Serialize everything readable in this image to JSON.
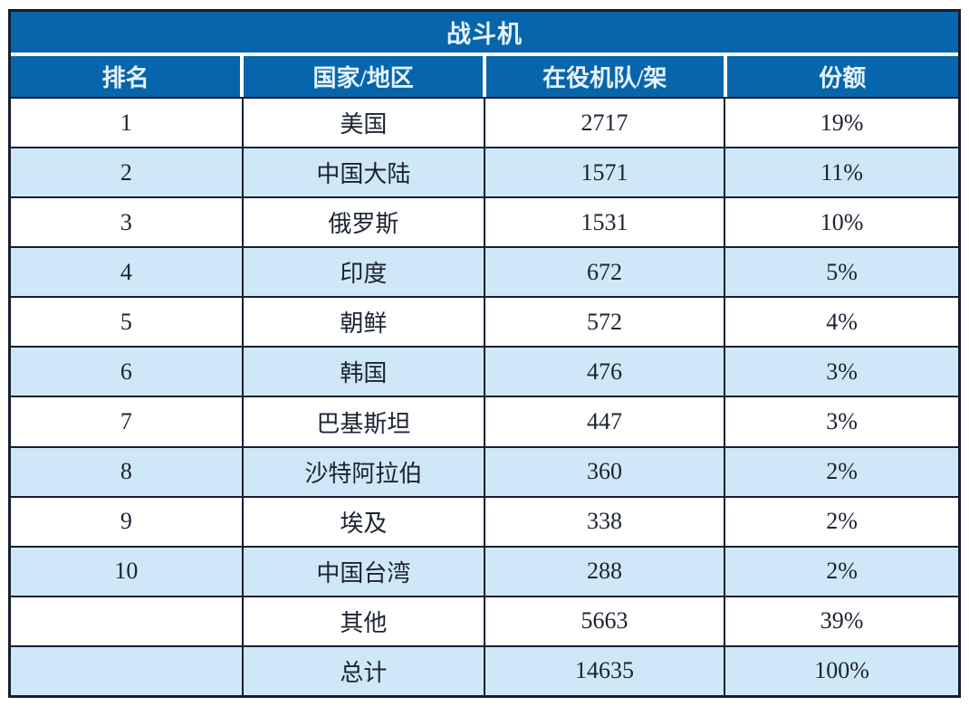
{
  "chart_data": {
    "type": "table",
    "title": "战斗机",
    "columns": [
      "排名",
      "国家/地区",
      "在役机队/架",
      "份额"
    ],
    "column_keys": [
      "rank",
      "country_region",
      "active_fleet",
      "share"
    ],
    "rows": [
      [
        "1",
        "美国",
        "2717",
        "19%"
      ],
      [
        "2",
        "中国大陆",
        "1571",
        "11%"
      ],
      [
        "3",
        "俄罗斯",
        "1531",
        "10%"
      ],
      [
        "4",
        "印度",
        "672",
        "5%"
      ],
      [
        "5",
        "朝鲜",
        "572",
        "4%"
      ],
      [
        "6",
        "韩国",
        "476",
        "3%"
      ],
      [
        "7",
        "巴基斯坦",
        "447",
        "3%"
      ],
      [
        "8",
        "沙特阿拉伯",
        "360",
        "2%"
      ],
      [
        "9",
        "埃及",
        "338",
        "2%"
      ],
      [
        "10",
        "中国台湾",
        "288",
        "2%"
      ],
      [
        "",
        "其他",
        "5663",
        "39%"
      ],
      [
        "",
        "总计",
        "14635",
        "100%"
      ]
    ],
    "layout_hints": {
      "zebra_striping": "even data rows highlighted",
      "header_separator": "white",
      "body_separator": "dark"
    }
  },
  "colors": {
    "header_bg": "#0766ab",
    "header_text": "#e6f3fc",
    "row_alt_bg": "#cfe8f7",
    "border": "#161d33",
    "text": "#1c2333"
  }
}
